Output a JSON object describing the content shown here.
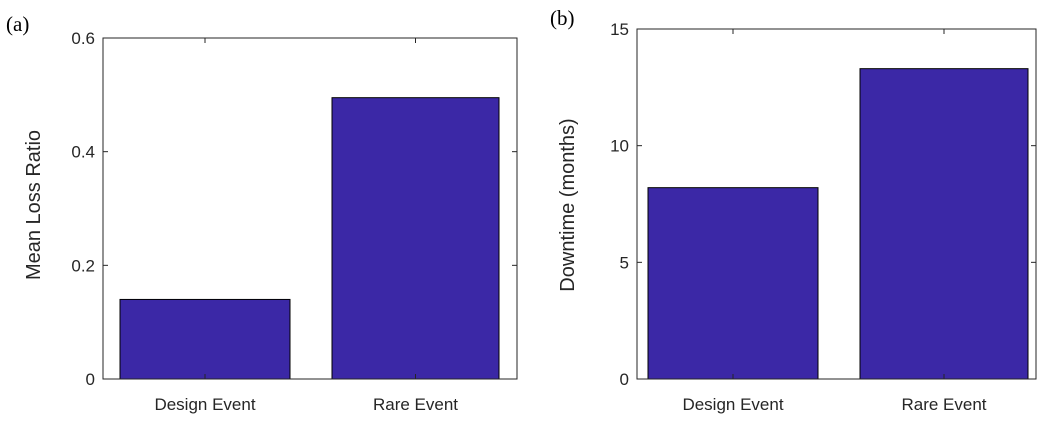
{
  "colors": {
    "bar": "#3b28a6",
    "axis": "#262626"
  },
  "chart_data": [
    {
      "type": "bar",
      "panel_label": "(a)",
      "title": "",
      "xlabel": "",
      "ylabel": "Mean Loss Ratio",
      "categories": [
        "Design Event",
        "Rare Event"
      ],
      "values": [
        0.14,
        0.495
      ],
      "ylim": [
        0,
        0.6
      ],
      "yticks": [
        0,
        0.2,
        0.4,
        0.6
      ],
      "ytick_labels": [
        "0",
        "0.2",
        "0.4",
        "0.6"
      ],
      "grid": false,
      "legend": "none"
    },
    {
      "type": "bar",
      "panel_label": "(b)",
      "title": "",
      "xlabel": "",
      "ylabel": "Downtime (months)",
      "categories": [
        "Design Event",
        "Rare Event"
      ],
      "values": [
        8.2,
        13.3
      ],
      "ylim": [
        0,
        15
      ],
      "yticks": [
        0,
        5,
        10,
        15
      ],
      "ytick_labels": [
        "0",
        "5",
        "10",
        "15"
      ],
      "grid": false,
      "legend": "none"
    }
  ]
}
